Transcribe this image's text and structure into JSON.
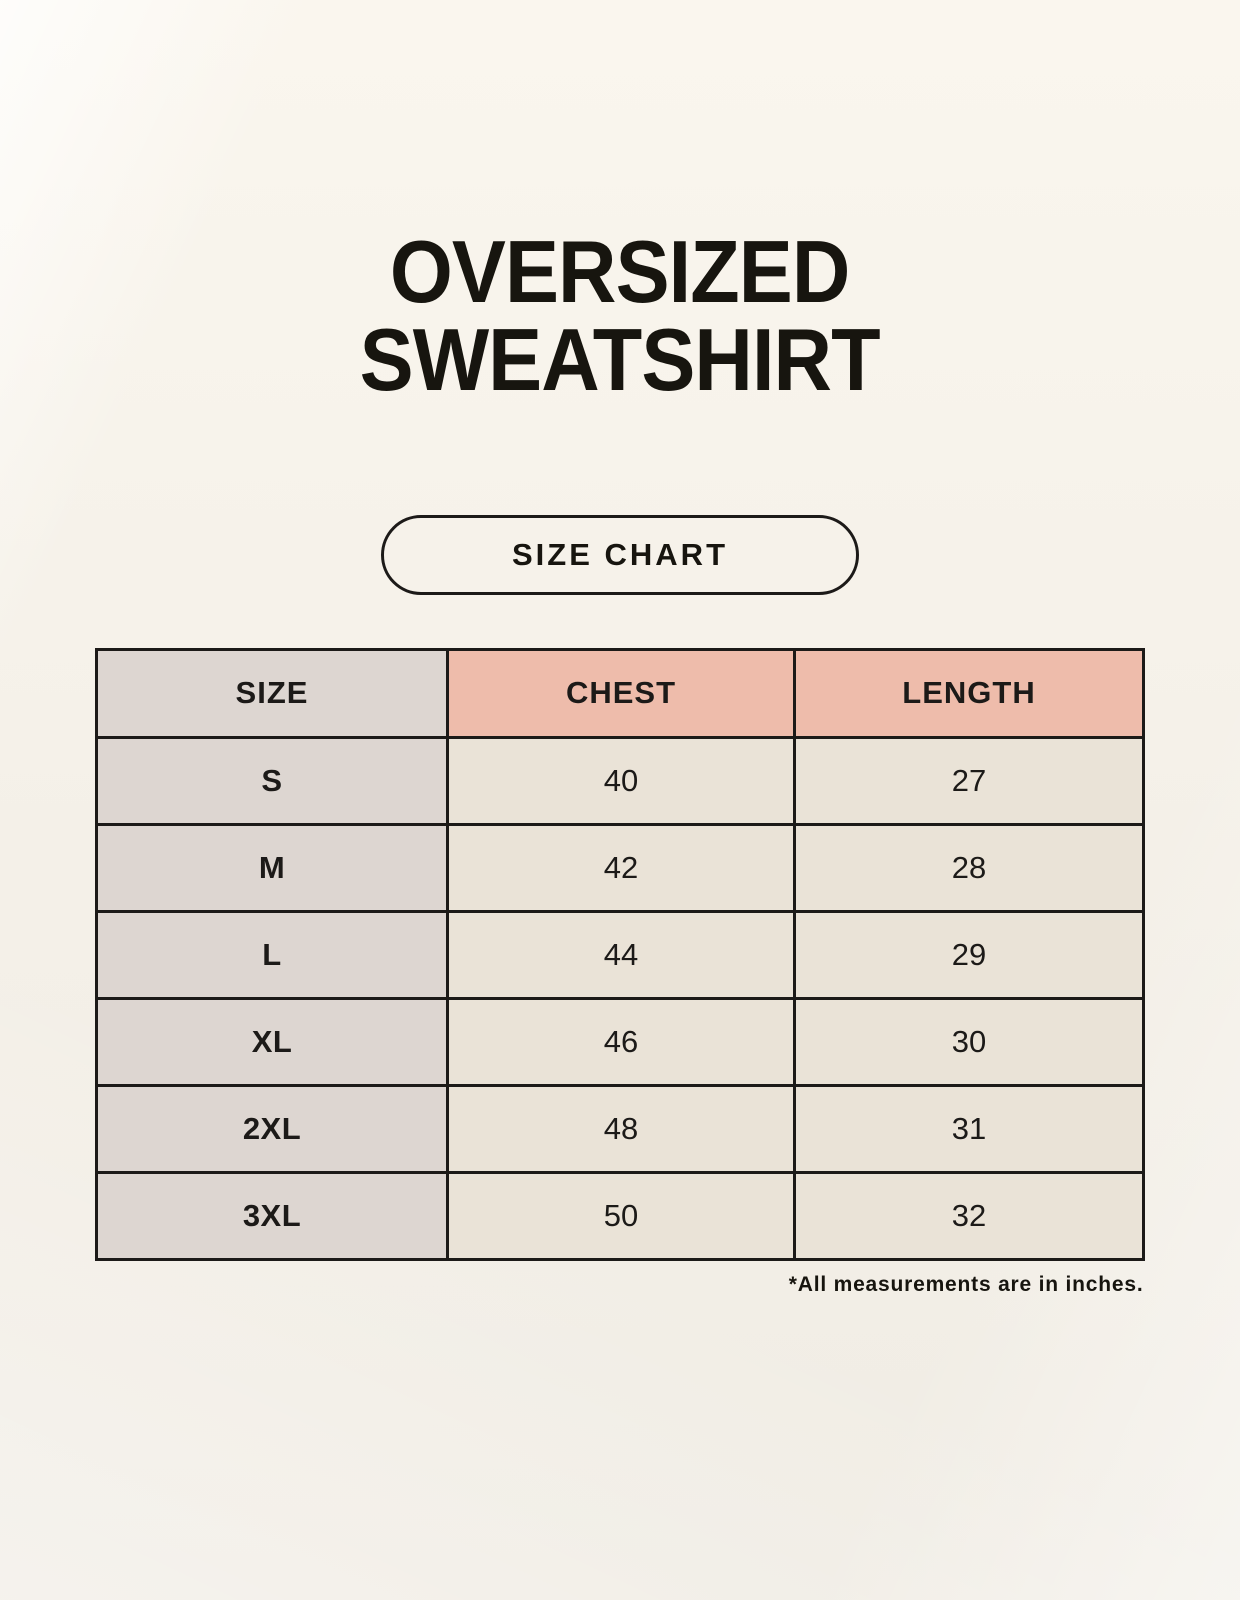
{
  "page": {
    "title_line1": "OVERSIZED",
    "title_line2": "SWEATSHIRT",
    "button_label": "SIZE CHART",
    "footnote": "*All measurements are in inches."
  },
  "table": {
    "headers": [
      "SIZE",
      "CHEST",
      "LENGTH"
    ],
    "rows": [
      {
        "size": "S",
        "chest": "40",
        "length": "27"
      },
      {
        "size": "M",
        "chest": "42",
        "length": "28"
      },
      {
        "size": "L",
        "chest": "44",
        "length": "29"
      },
      {
        "size": "XL",
        "chest": "46",
        "length": "30"
      },
      {
        "size": "2XL",
        "chest": "48",
        "length": "31"
      },
      {
        "size": "3XL",
        "chest": "50",
        "length": "32"
      }
    ]
  },
  "colors": {
    "background_cream": "#f4f0e8",
    "header_pink": "#eebcab",
    "size_column_gray": "#ddd6d1",
    "cell_cream": "#eae3d7",
    "border_dark": "#1c1a18",
    "text": "#17150f"
  },
  "chart_data": {
    "type": "table",
    "title": "OVERSIZED SWEATSHIRT",
    "subtitle": "SIZE CHART",
    "columns": [
      "SIZE",
      "CHEST",
      "LENGTH"
    ],
    "rows": [
      [
        "S",
        40,
        27
      ],
      [
        "M",
        42,
        28
      ],
      [
        "L",
        44,
        29
      ],
      [
        "XL",
        46,
        30
      ],
      [
        "2XL",
        48,
        31
      ],
      [
        "3XL",
        50,
        32
      ]
    ],
    "units": "inches",
    "annotations": [
      "*All measurements are in inches."
    ]
  }
}
